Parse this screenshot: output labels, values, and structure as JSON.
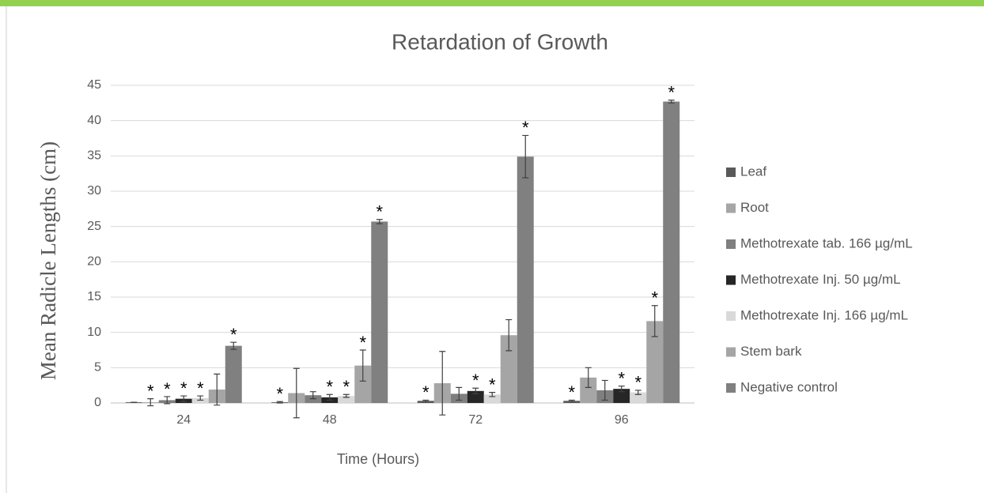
{
  "chart_data": {
    "type": "bar",
    "title": "Retardation of Growth",
    "x_label": "Time (Hours)",
    "y_label": "Mean Radicle Lengths (cm)",
    "categories": [
      "24",
      "48",
      "72",
      "96"
    ],
    "ylim": [
      0,
      45
    ],
    "yticks": [
      0,
      5,
      10,
      15,
      20,
      25,
      30,
      35,
      40,
      45
    ],
    "grid": true,
    "legend": "right",
    "series": [
      {
        "name": "Leaf",
        "color": "#595959",
        "values": [
          0.1,
          0.1,
          0.3,
          0.3
        ],
        "errors": [
          0,
          0.1,
          0.1,
          0.1
        ],
        "significance": [
          null,
          "*",
          "*",
          "*"
        ]
      },
      {
        "name": "Root",
        "color": "#a6a6a6",
        "values": [
          0.1,
          1.4,
          2.8,
          3.6
        ],
        "errors": [
          0.5,
          3.5,
          4.5,
          1.4
        ],
        "significance": [
          "*",
          null,
          null,
          null
        ]
      },
      {
        "name": "Methotrexate tab. 166 µg/mL",
        "color": "#7f7f7f",
        "values": [
          0.4,
          1.1,
          1.3,
          1.8
        ],
        "errors": [
          0.5,
          0.5,
          0.9,
          1.4
        ],
        "significance": [
          "*",
          null,
          null,
          null
        ]
      },
      {
        "name": "Methotrexate Inj.  50 µg/mL",
        "color": "#262626",
        "values": [
          0.6,
          0.8,
          1.7,
          2.0
        ],
        "errors": [
          0.4,
          0.4,
          0.4,
          0.4
        ],
        "significance": [
          "*",
          "*",
          "*",
          "*"
        ]
      },
      {
        "name": "Methotrexate Inj. 166 µg/mL",
        "color": "#d9d9d9",
        "values": [
          0.7,
          1.0,
          1.2,
          1.5
        ],
        "errors": [
          0.3,
          0.2,
          0.3,
          0.3
        ],
        "significance": [
          "*",
          "*",
          "*",
          "*"
        ]
      },
      {
        "name": "Stem bark",
        "color": "#a5a5a5",
        "values": [
          1.9,
          5.3,
          9.6,
          11.6
        ],
        "errors": [
          2.2,
          2.2,
          2.2,
          2.2
        ],
        "significance": [
          null,
          "*",
          null,
          "*"
        ]
      },
      {
        "name": "Negative control",
        "color": "#808080",
        "values": [
          8.1,
          25.7,
          34.9,
          42.7
        ],
        "errors": [
          0.5,
          0.3,
          3,
          0.2
        ],
        "significance": [
          "*",
          "*",
          "*",
          "*"
        ]
      }
    ]
  }
}
